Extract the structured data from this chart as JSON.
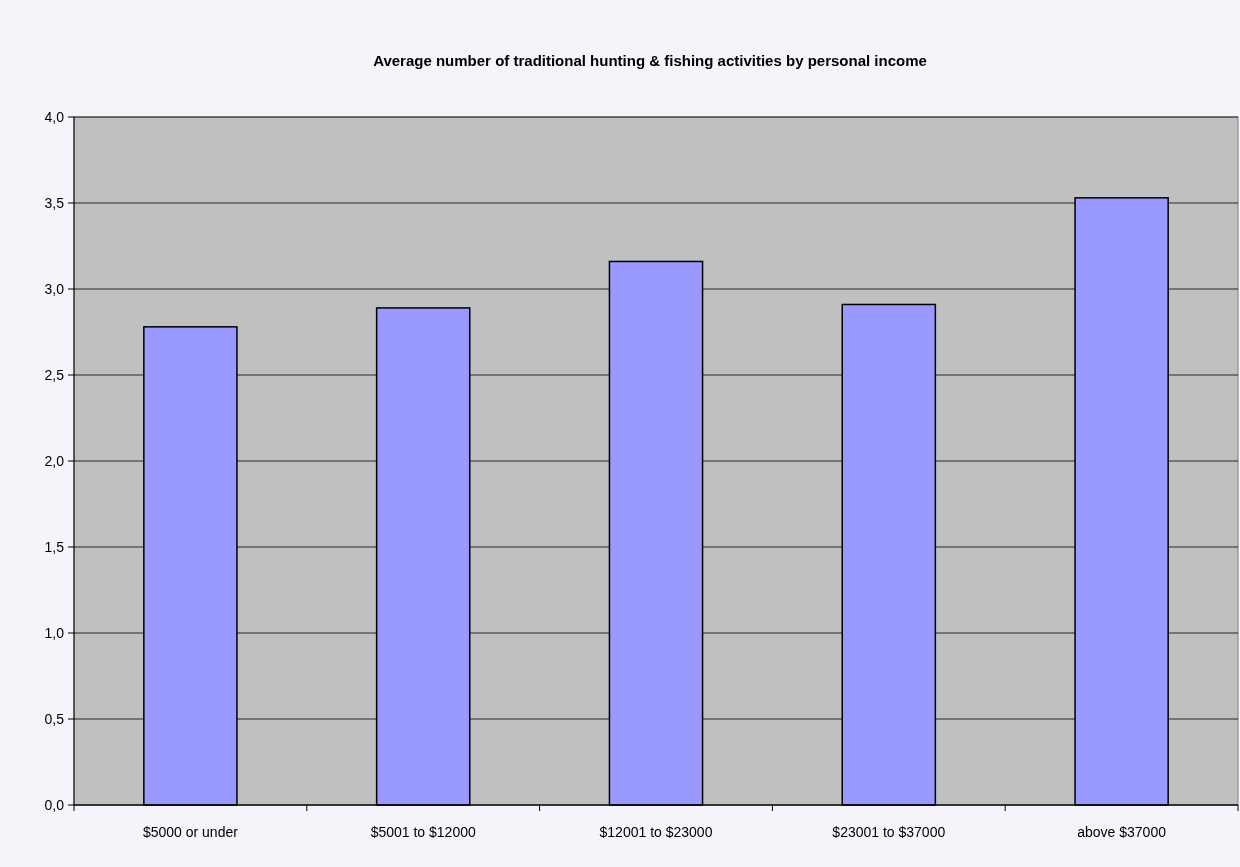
{
  "chart_data": {
    "type": "bar",
    "title": "Average number of traditional hunting & fishing activities by personal income",
    "categories": [
      "$5000 or under",
      "$5001 to $12000",
      "$12001 to $23000",
      "$23001 to $37000",
      "above $37000"
    ],
    "values": [
      2.78,
      2.89,
      3.16,
      2.91,
      3.53
    ],
    "color": "#9999ff",
    "ylim": [
      0,
      4
    ],
    "yticks": [
      {
        "value": 0,
        "label": "0,0"
      },
      {
        "value": 0.5,
        "label": "0,5"
      },
      {
        "value": 1,
        "label": "1,0"
      },
      {
        "value": 1.5,
        "label": "1,5"
      },
      {
        "value": 2,
        "label": "2,0"
      },
      {
        "value": 2.5,
        "label": "2,5"
      },
      {
        "value": 3,
        "label": "3,0"
      },
      {
        "value": 3.5,
        "label": "3,5"
      },
      {
        "value": 4,
        "label": "4,0"
      }
    ],
    "grid": "y"
  }
}
